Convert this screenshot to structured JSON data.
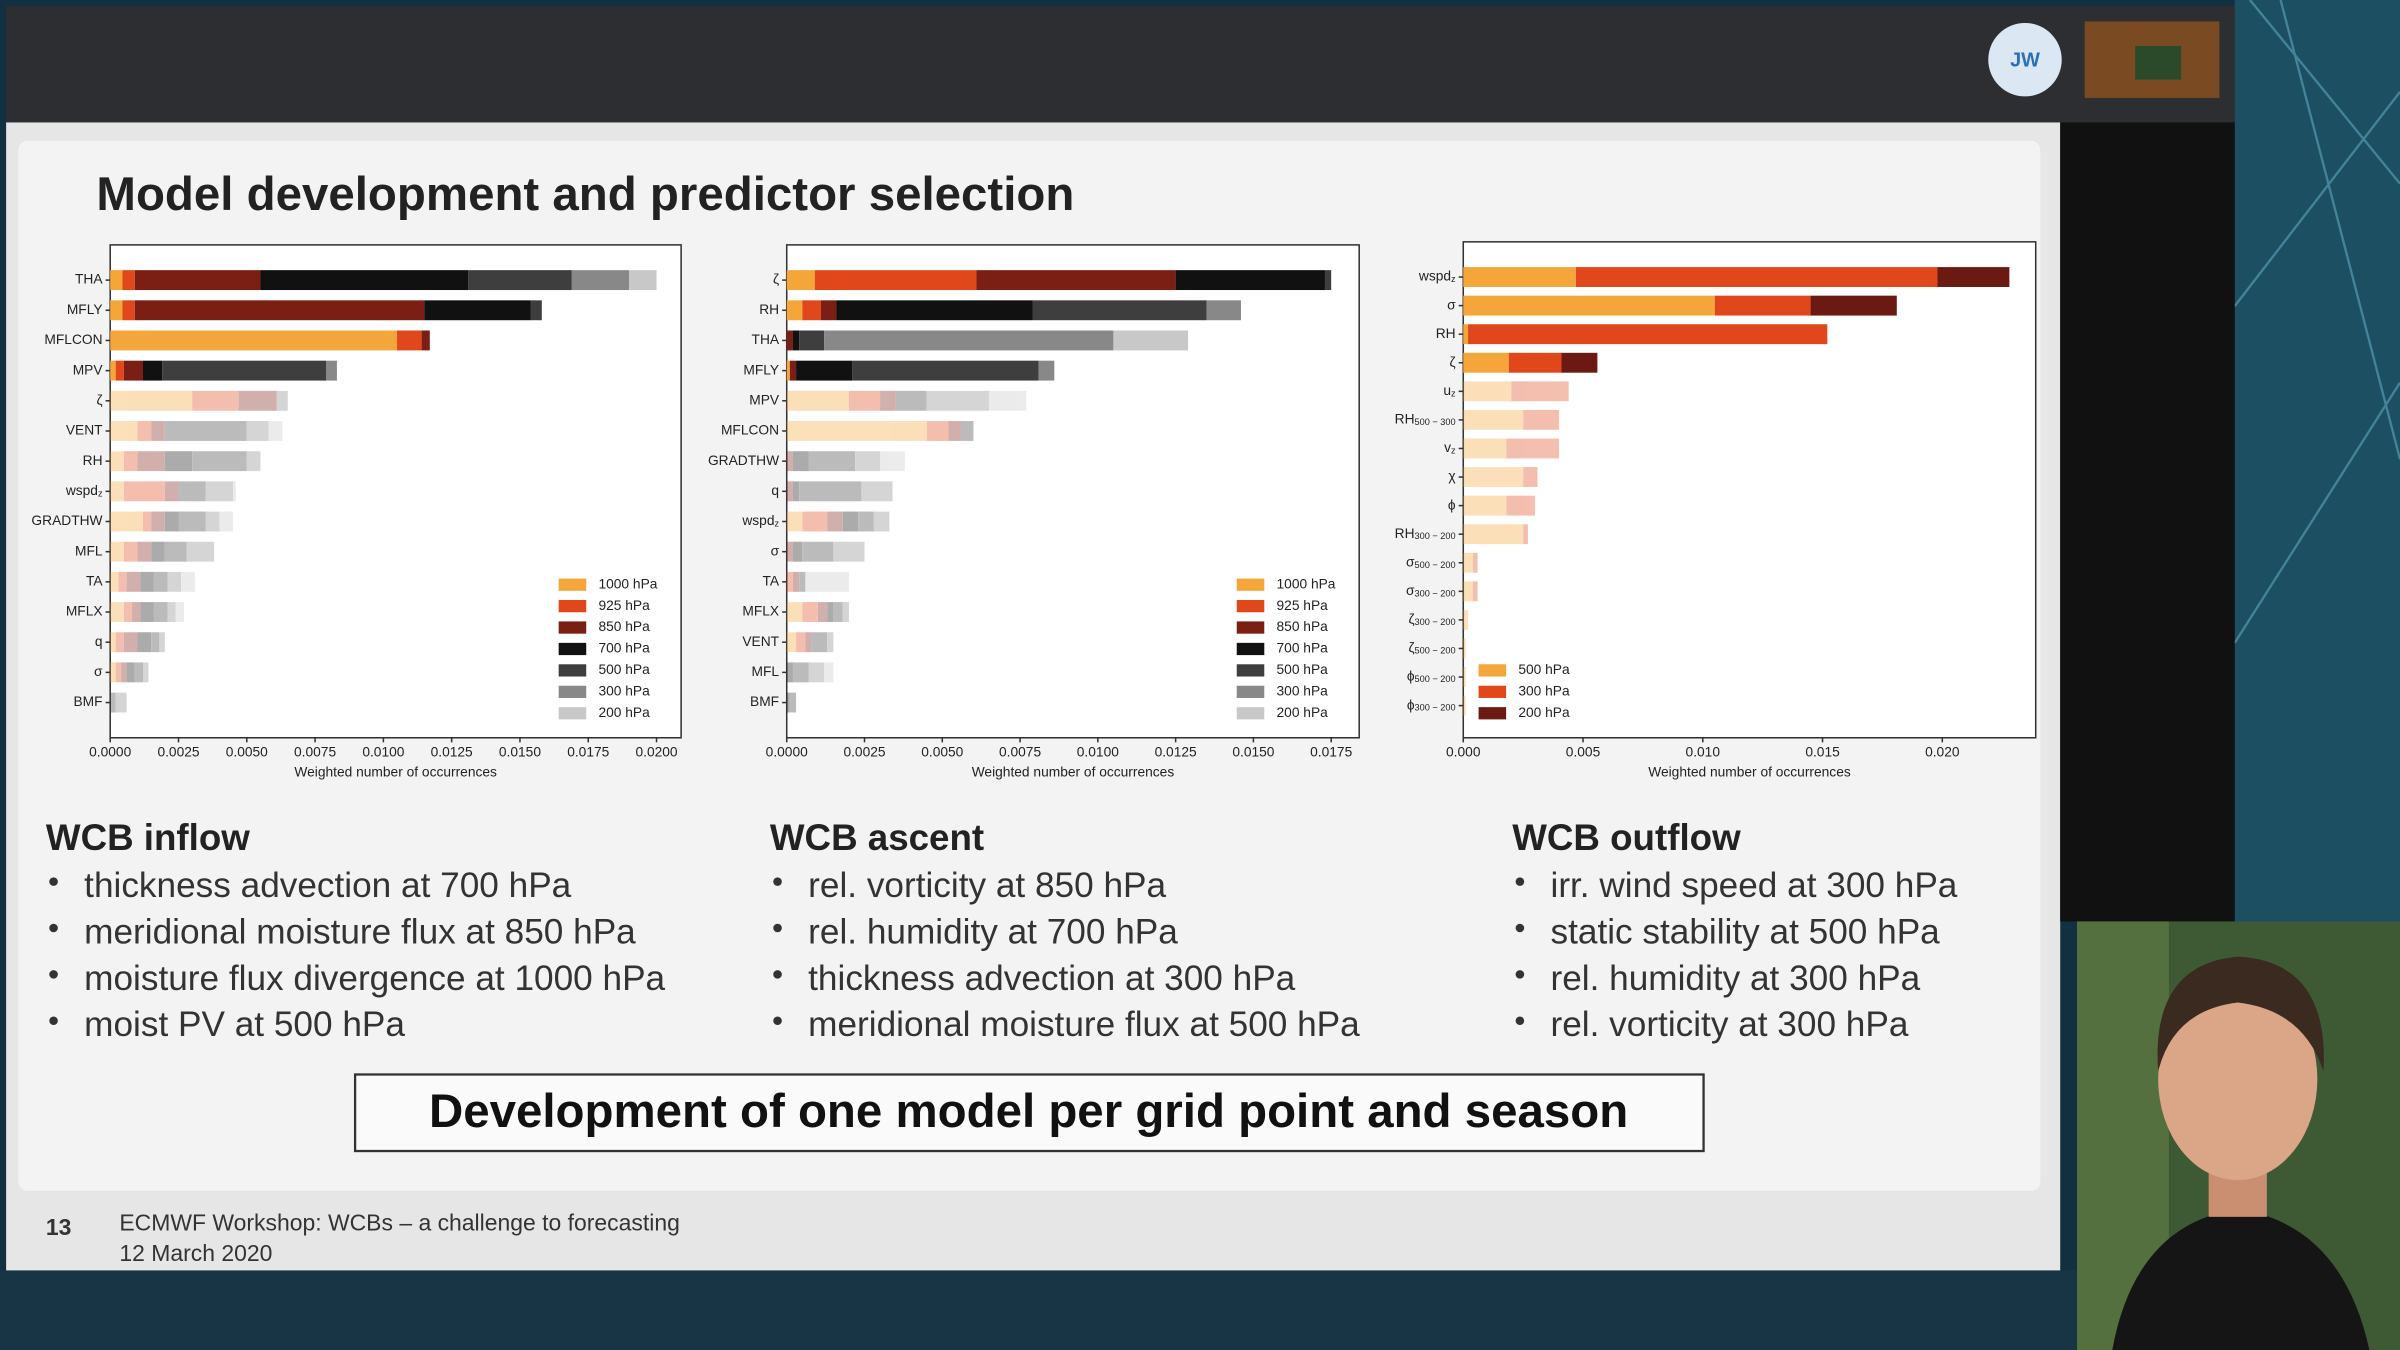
{
  "header": {
    "avatar_initials": "JW"
  },
  "slide": {
    "title": "Model development and predictor selection",
    "charts": [
      {
        "type": "bar",
        "orientation": "horizontal",
        "stacked": true,
        "legend": "lower right",
        "categories": [
          "THA",
          "MFLY",
          "MFLCON",
          "MPV",
          "ζ",
          "VENT",
          "RH",
          {
            "text": "wspd",
            "sub": "z"
          },
          "GRADTHW",
          "MFL",
          "TA",
          "MFLX",
          "q",
          "σ",
          "BMF"
        ],
        "series": [
          {
            "name": "1000 hPa",
            "color": "#f4a63a",
            "values": [
              0.00045,
              0.00045,
              0.0105,
              0.0002,
              0.003,
              0.001,
              0.0005,
              0.0005,
              0.0012,
              0.0005,
              0.0003,
              0.0005,
              0.0002,
              0.0002,
              0
            ]
          },
          {
            "name": "925 hPa",
            "color": "#e0471a",
            "values": [
              0.00045,
              0.00045,
              0.0009,
              0.0003,
              0.0017,
              0.0005,
              0.0005,
              0.0015,
              0.0003,
              0.0005,
              0.0003,
              0.0003,
              0.0003,
              0.0002,
              0
            ]
          },
          {
            "name": "850 hPa",
            "color": "#7b1e14",
            "values": [
              0.0046,
              0.0106,
              0.0003,
              0.0007,
              0.0014,
              0.0005,
              0.001,
              0.0005,
              0.0005,
              0.0005,
              0.0005,
              0.0003,
              0.0005,
              0.0002,
              0
            ]
          },
          {
            "name": "700 hPa",
            "color": "#111111",
            "values": [
              0.0076,
              0.0039,
              0,
              0.0007,
              0,
              0,
              0.001,
              0,
              0.0005,
              0.0005,
              0.0005,
              0.0005,
              0.0005,
              0.0003,
              0
            ]
          },
          {
            "name": "500 hPa",
            "color": "#3e3e3e",
            "values": [
              0.0038,
              0.0004,
              0,
              0.006,
              0,
              0.003,
              0.002,
              0.001,
              0.001,
              0.0008,
              0.0005,
              0.0005,
              0.0003,
              0.0003,
              0.0002
            ]
          },
          {
            "name": "300 hPa",
            "color": "#888888",
            "values": [
              0.0021,
              0,
              0,
              0.0004,
              0.0004,
              0.0008,
              0.0005,
              0.001,
              0.0005,
              0.001,
              0.0005,
              0.0003,
              0.0002,
              0.0002,
              0.0004
            ]
          },
          {
            "name": "200 hPa",
            "color": "#c8c8c8",
            "values": [
              0.001,
              0,
              0,
              0,
              0,
              0.0005,
              0,
              0.0001,
              0.0005,
              0,
              0.0005,
              0.0003,
              0,
              0,
              0
            ]
          }
        ],
        "xlim": [
          0,
          0.0209
        ],
        "xticks": [
          {
            "value": 0,
            "label": "0.0000"
          },
          0.0025,
          {
            "value": 0.005,
            "label": "0.0050"
          },
          0.0075,
          {
            "value": 0.01,
            "label": "0.0100"
          },
          0.0125,
          {
            "value": 0.015,
            "label": "0.0150"
          },
          0.0175,
          {
            "value": 0.02,
            "label": "0.0200"
          }
        ],
        "xlabel": "Weighted number of occurrences"
      },
      {
        "type": "bar",
        "orientation": "horizontal",
        "stacked": true,
        "legend": "lower right",
        "categories": [
          "ζ",
          "RH",
          "THA",
          "MFLY",
          "MPV",
          "MFLCON",
          "GRADTHW",
          "q",
          {
            "text": "wspd",
            "sub": "z"
          },
          "σ",
          "TA",
          "MFLX",
          "VENT",
          "MFL",
          "BMF"
        ],
        "series": [
          {
            "name": "1000 hPa",
            "color": "#f4a63a",
            "values": [
              0.0009,
              0.0005,
              0,
              0.0001,
              0.002,
              0.0045,
              0,
              0,
              0.0005,
              0,
              0,
              0.0005,
              0.0003,
              0,
              0
            ]
          },
          {
            "name": "925 hPa",
            "color": "#e0471a",
            "values": [
              0.0052,
              0.0006,
              0,
              0,
              0.001,
              0.0007,
              0,
              0,
              0.0008,
              0,
              0.0002,
              0.0005,
              0.0003,
              0,
              0
            ]
          },
          {
            "name": "850 hPa",
            "color": "#7b1e14",
            "values": [
              0.0064,
              0.0005,
              0.0002,
              0.0002,
              0.0005,
              0.0004,
              0.0002,
              0.0002,
              0.0005,
              0.0002,
              0.0002,
              0.0003,
              0.0002,
              0,
              0
            ]
          },
          {
            "name": "700 hPa",
            "color": "#111111",
            "values": [
              0.0048,
              0.0063,
              0.0002,
              0.0018,
              0,
              0,
              0.0005,
              0.0002,
              0.0005,
              0.0003,
              0,
              0.0002,
              0,
              0.0002,
              0.0001
            ]
          },
          {
            "name": "500 hPa",
            "color": "#3e3e3e",
            "values": [
              0.0002,
              0.0056,
              0.0008,
              0.006,
              0.001,
              0.0004,
              0.0015,
              0.002,
              0.0005,
              0.001,
              0.0002,
              0.0003,
              0.0005,
              0.0005,
              0.0002
            ]
          },
          {
            "name": "300 hPa",
            "color": "#888888",
            "values": [
              0,
              0.0011,
              0.0093,
              0.0005,
              0.002,
              0,
              0.0008,
              0.001,
              0.0005,
              0.001,
              0,
              0.0002,
              0.0002,
              0.0005,
              0
            ]
          },
          {
            "name": "200 hPa",
            "color": "#c8c8c8",
            "values": [
              0,
              0,
              0.0024,
              0,
              0.0012,
              0,
              0.0008,
              0,
              0,
              0,
              0.0014,
              0,
              0,
              0.0003,
              0
            ]
          }
        ],
        "xlim": [
          0,
          0.0184
        ],
        "xticks": [
          {
            "value": 0,
            "label": "0.0000"
          },
          0.0025,
          {
            "value": 0.005,
            "label": "0.0050"
          },
          0.0075,
          {
            "value": 0.01,
            "label": "0.0100"
          },
          0.0125,
          {
            "value": 0.015,
            "label": "0.0150"
          },
          0.0175
        ],
        "xlabel": "Weighted number of occurrences"
      },
      {
        "type": "bar",
        "orientation": "horizontal",
        "stacked": true,
        "legend": "lower left",
        "categories": [
          {
            "text": "wspd",
            "sub": "z"
          },
          "σ",
          "RH",
          "ζ",
          {
            "text": "u",
            "sub": "z"
          },
          {
            "text": "RH",
            "sub": "500 − 300"
          },
          {
            "text": "v",
            "sub": "z"
          },
          "χ",
          "ϕ",
          {
            "text": "RH",
            "sub": "300 − 200"
          },
          {
            "text": "σ",
            "sub": "500 − 200"
          },
          {
            "text": "σ",
            "sub": "300 − 200"
          },
          {
            "text": "ζ",
            "sub": "300 − 200"
          },
          {
            "text": "ζ",
            "sub": "500 − 200"
          },
          {
            "text": "ϕ",
            "sub": "500 − 200"
          },
          {
            "text": "ϕ",
            "sub": "300 − 200"
          }
        ],
        "series": [
          {
            "name": "500 hPa",
            "color": "#f4a63a",
            "values": [
              0.0047,
              0.0105,
              0.0002,
              0.0019,
              0.002,
              0.0025,
              0.0018,
              0.0025,
              0.0018,
              0.0025,
              0.0004,
              0.0004,
              0.0002,
              0.0001,
              0.0001,
              0.0001
            ]
          },
          {
            "name": "300 hPa",
            "color": "#e0471a",
            "values": [
              0.0151,
              0.004,
              0.015,
              0.0022,
              0.0024,
              0.0015,
              0.0022,
              0.0006,
              0.0012,
              0.0002,
              0.0002,
              0.0002,
              0,
              0,
              0,
              0
            ]
          },
          {
            "name": "200 hPa",
            "color": "#6b1a12",
            "values": [
              0.003,
              0.0036,
              0,
              0.0015,
              0,
              0,
              0,
              0,
              0,
              0,
              0,
              0,
              0,
              0,
              0,
              0
            ]
          }
        ],
        "xlim": [
          0,
          0.0239
        ],
        "xticks": [
          {
            "value": 0,
            "label": "0.000"
          },
          0.005,
          {
            "value": 0.01,
            "label": "0.010"
          },
          0.015,
          {
            "value": 0.02,
            "label": "0.020"
          }
        ],
        "xlabel": "Weighted number of occurrences"
      }
    ],
    "sections": [
      {
        "heading": "WCB inflow",
        "bullets": [
          "thickness advection at 700 hPa",
          "meridional moisture flux at 850 hPa",
          "moisture flux divergence at 1000 hPa",
          "moist PV at 500 hPa"
        ]
      },
      {
        "heading": "WCB ascent",
        "bullets": [
          "rel. vorticity at 850 hPa",
          "rel. humidity at 700 hPa",
          "thickness advection at 300 hPa",
          "meridional moisture flux at 500 hPa"
        ]
      },
      {
        "heading": "WCB outflow",
        "bullets": [
          "irr. wind speed at 300 hPa",
          "static stability at 500 hPa",
          "rel. humidity at 300 hPa",
          "rel. vorticity at 300 hPa"
        ]
      }
    ],
    "conclusion": "Development of one model per grid point and season",
    "footer": {
      "page": 13,
      "event": "ECMWF Workshop: WCBs – a challenge to forecasting",
      "date": "12 March 2020"
    }
  }
}
